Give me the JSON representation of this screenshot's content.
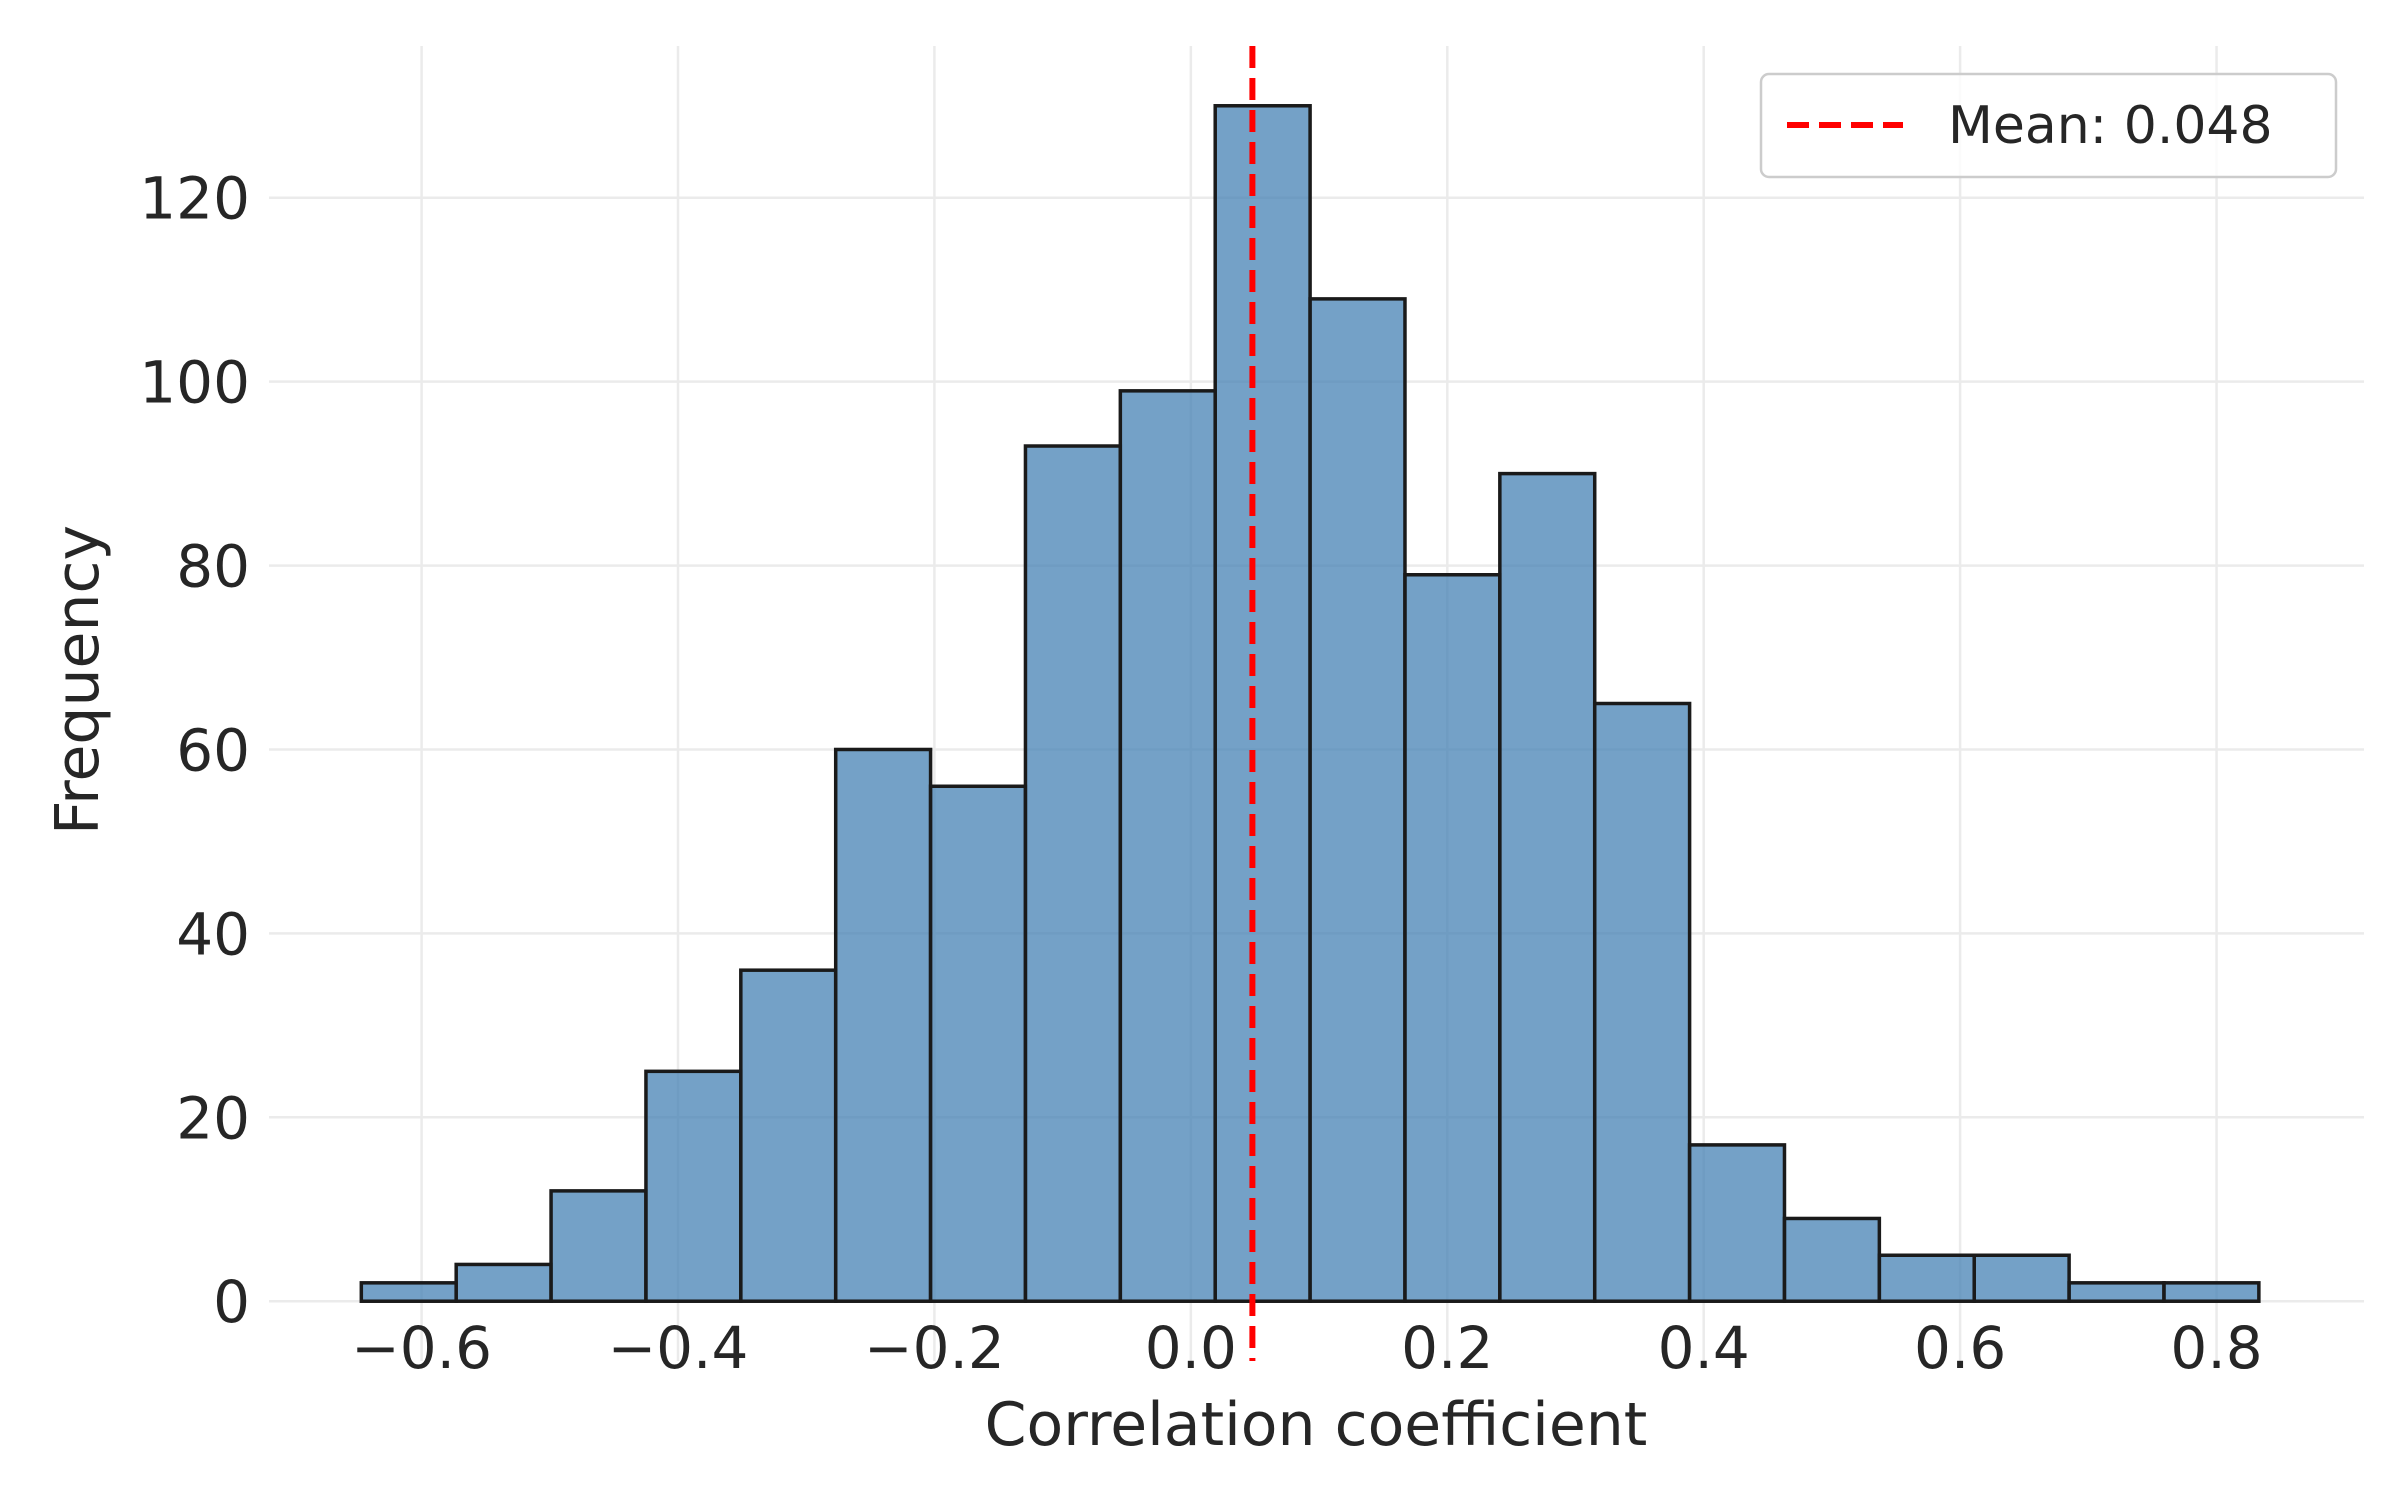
{
  "chart_data": {
    "type": "bar",
    "subtype": "histogram",
    "title": "",
    "xlabel": "Correlation coefficient",
    "ylabel": "Frequency",
    "xlim": [
      -0.719,
      0.915
    ],
    "ylim": [
      -6.5,
      136.5
    ],
    "xticks": [
      -0.6,
      -0.4,
      -0.2,
      0.0,
      0.2,
      0.4,
      0.6,
      0.8
    ],
    "xtick_labels": [
      "−0.6",
      "−0.4",
      "−0.2",
      "0.0",
      "0.2",
      "0.4",
      "0.6",
      "0.8"
    ],
    "yticks": [
      0,
      20,
      40,
      60,
      80,
      100,
      120
    ],
    "ytick_labels": [
      "0",
      "20",
      "40",
      "60",
      "80",
      "100",
      "120"
    ],
    "grid": true,
    "bin_start": -0.647,
    "bin_end": 0.833,
    "values": [
      2,
      4,
      12,
      25,
      36,
      60,
      56,
      93,
      99,
      130,
      109,
      79,
      90,
      65,
      17,
      9,
      5,
      5,
      2,
      2
    ],
    "bar_color": "#4682b4",
    "edge_color": "#1a1a1a",
    "mean_line": {
      "value": 0.048,
      "color": "#ff0000",
      "style": "dashed"
    },
    "legend": {
      "placement": "top-right",
      "entries": [
        "Mean: 0.048"
      ]
    }
  }
}
